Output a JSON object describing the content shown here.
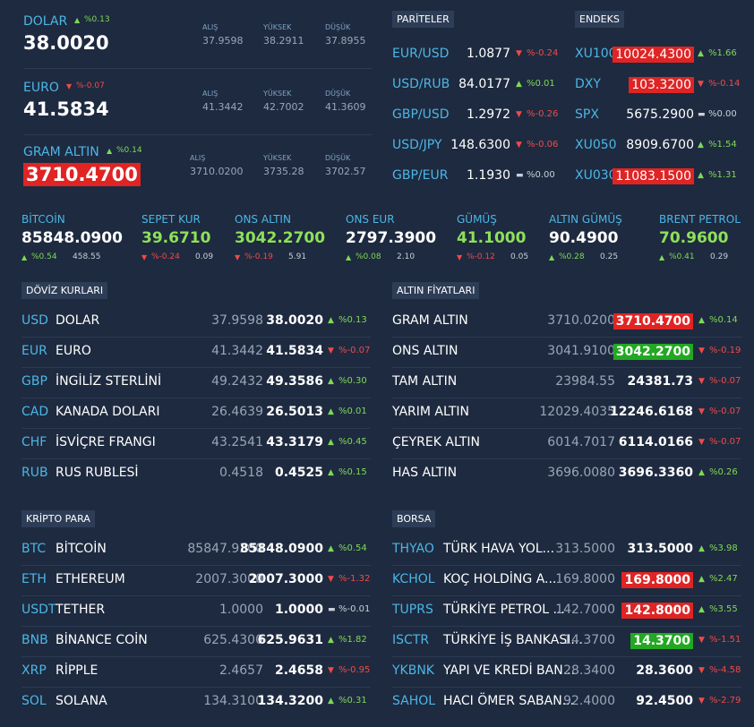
{
  "stat_labels": [
    "ALIŞ",
    "YÜKSEK",
    "DÜŞÜK"
  ],
  "top": [
    {
      "name": "DOLAR",
      "change": "%0.13",
      "trend": "up",
      "price": "38.0020",
      "stats": [
        "37.9598",
        "38.2911",
        "37.8955"
      ]
    },
    {
      "name": "EURO",
      "change": "%-0.07",
      "trend": "down",
      "price": "41.5834",
      "stats": [
        "41.3442",
        "42.7002",
        "41.3609"
      ]
    },
    {
      "name": "GRAM ALTIN",
      "change": "%0.14",
      "trend": "up",
      "price": "3710.4700",
      "highlight": "red",
      "stats": [
        "3710.0200",
        "3735.28",
        "3702.57"
      ]
    }
  ],
  "pariteler": {
    "title": "PARİTELER",
    "rows": [
      {
        "name": "EUR/USD",
        "value": "1.0877",
        "change": "%-0.24",
        "trend": "down"
      },
      {
        "name": "USD/RUB",
        "value": "84.0177",
        "change": "%0.01",
        "trend": "up"
      },
      {
        "name": "GBP/USD",
        "value": "1.2972",
        "change": "%-0.26",
        "trend": "down"
      },
      {
        "name": "USD/JPY",
        "value": "148.6300",
        "change": "%-0.06",
        "trend": "down"
      },
      {
        "name": "GBP/EUR",
        "value": "1.1930",
        "change": "%0.00",
        "trend": "flat"
      }
    ]
  },
  "endeks": {
    "title": "ENDEKS",
    "rows": [
      {
        "name": "XU100",
        "value": "10024.4300",
        "change": "%1.66",
        "trend": "up",
        "highlight": "red"
      },
      {
        "name": "DXY",
        "value": "103.3200",
        "change": "%-0.14",
        "trend": "down",
        "highlight": "red"
      },
      {
        "name": "SPX",
        "value": "5675.2900",
        "change": "%0.00",
        "trend": "flat"
      },
      {
        "name": "XU050",
        "value": "8909.6700",
        "change": "%1.54",
        "trend": "up"
      },
      {
        "name": "XU030",
        "value": "11083.1500",
        "change": "%1.31",
        "trend": "up",
        "highlight": "red"
      }
    ]
  },
  "strip": [
    {
      "name": "BİTCOİN",
      "price": "85848.0900",
      "color": "white",
      "change": "%0.54",
      "trend": "up",
      "diff": "458.55"
    },
    {
      "name": "SEPET KUR",
      "price": "39.6710",
      "color": "green",
      "change": "%-0.24",
      "trend": "down",
      "diff": "0.09"
    },
    {
      "name": "ONS ALTIN",
      "price": "3042.2700",
      "color": "green",
      "change": "%-0.19",
      "trend": "down",
      "diff": "5.91"
    },
    {
      "name": "ONS EUR",
      "price": "2797.3900",
      "color": "white",
      "change": "%0.08",
      "trend": "up",
      "diff": "2.10"
    },
    {
      "name": "GÜMÜŞ",
      "price": "41.1000",
      "color": "green",
      "change": "%-0.12",
      "trend": "down",
      "diff": "0.05"
    },
    {
      "name": "ALTIN GÜMÜŞ",
      "price": "90.4900",
      "color": "white",
      "change": "%0.28",
      "trend": "up",
      "diff": "0.25"
    },
    {
      "name": "BRENT PETROL",
      "price": "70.9600",
      "color": "green",
      "change": "%0.41",
      "trend": "up",
      "diff": "0.29"
    }
  ],
  "tables": [
    {
      "title": "DÖVİZ KURLARI",
      "rows": [
        {
          "code": "USD",
          "name": "DOLAR",
          "buy": "37.9598",
          "sell": "38.0020",
          "change": "%0.13",
          "trend": "up"
        },
        {
          "code": "EUR",
          "name": "EURO",
          "buy": "41.3442",
          "sell": "41.5834",
          "change": "%-0.07",
          "trend": "down"
        },
        {
          "code": "GBP",
          "name": "İNGİLİZ STERLİNİ",
          "buy": "49.2432",
          "sell": "49.3586",
          "change": "%0.30",
          "trend": "up"
        },
        {
          "code": "CAD",
          "name": "KANADA DOLARI",
          "buy": "26.4639",
          "sell": "26.5013",
          "change": "%0.01",
          "trend": "up"
        },
        {
          "code": "CHF",
          "name": "İSVİÇRE FRANGI",
          "buy": "43.2541",
          "sell": "43.3179",
          "change": "%0.45",
          "trend": "up"
        },
        {
          "code": "RUB",
          "name": "RUS RUBLESİ",
          "buy": "0.4518",
          "sell": "0.4525",
          "change": "%0.15",
          "trend": "up"
        }
      ]
    },
    {
      "title": "ALTIN FİYATLARI",
      "rows": [
        {
          "name": "GRAM ALTIN",
          "buy": "3710.0200",
          "sell": "3710.4700",
          "change": "%0.14",
          "trend": "up",
          "highlight": "red"
        },
        {
          "name": "ONS ALTIN",
          "buy": "3041.9100",
          "sell": "3042.2700",
          "change": "%-0.19",
          "trend": "down",
          "highlight": "green"
        },
        {
          "name": "TAM ALTIN",
          "buy": "23984.55",
          "sell": "24381.73",
          "change": "%-0.07",
          "trend": "down"
        },
        {
          "name": "YARIM ALTIN",
          "buy": "12029.4035",
          "sell": "12246.6168",
          "change": "%-0.07",
          "trend": "down"
        },
        {
          "name": "ÇEYREK ALTIN",
          "buy": "6014.7017",
          "sell": "6114.0166",
          "change": "%-0.07",
          "trend": "down"
        },
        {
          "name": "HAS ALTIN",
          "buy": "3696.0080",
          "sell": "3696.3360",
          "change": "%0.26",
          "trend": "up"
        }
      ]
    },
    {
      "title": "KRİPTO PARA",
      "rows": [
        {
          "code": "BTC",
          "name": "BİTCOİN",
          "buy": "85847.9300",
          "sell": "85848.0900",
          "change": "%0.54",
          "trend": "up"
        },
        {
          "code": "ETH",
          "name": "ETHEREUM",
          "buy": "2007.3000",
          "sell": "2007.3000",
          "change": "%-1.32",
          "trend": "down"
        },
        {
          "code": "USDT",
          "name": "TETHER",
          "buy": "1.0000",
          "sell": "1.0000",
          "change": "%-0.01",
          "trend": "flat"
        },
        {
          "code": "BNB",
          "name": "BİNANCE COİN",
          "buy": "625.4300",
          "sell": "625.9631",
          "change": "%1.82",
          "trend": "up"
        },
        {
          "code": "XRP",
          "name": "RİPPLE",
          "buy": "2.4657",
          "sell": "2.4658",
          "change": "%-0.95",
          "trend": "down"
        },
        {
          "code": "SOL",
          "name": "SOLANA",
          "buy": "134.3100",
          "sell": "134.3200",
          "change": "%0.31",
          "trend": "up"
        }
      ]
    },
    {
      "title": "BORSA",
      "rows": [
        {
          "code": "THYAO",
          "name": "TÜRK HAVA YOL...",
          "buy": "313.5000",
          "sell": "313.5000",
          "change": "%3.98",
          "trend": "up"
        },
        {
          "code": "KCHOL",
          "name": "KOÇ HOLDİNG A...",
          "buy": "169.8000",
          "sell": "169.8000",
          "change": "%2.47",
          "trend": "up",
          "highlight": "red"
        },
        {
          "code": "TUPRS",
          "name": "TÜRKİYE PETROL ...",
          "buy": "142.7000",
          "sell": "142.8000",
          "change": "%3.55",
          "trend": "up",
          "highlight": "red"
        },
        {
          "code": "ISCTR",
          "name": "TÜRKİYE İŞ BANKASI...",
          "buy": "14.3700",
          "sell": "14.3700",
          "change": "%-1.51",
          "trend": "down",
          "highlight": "green"
        },
        {
          "code": "YKBNK",
          "name": "YAPI VE KREDİ BAN...",
          "buy": "28.3400",
          "sell": "28.3600",
          "change": "%-4.58",
          "trend": "down"
        },
        {
          "code": "SAHOL",
          "name": "HACI ÖMER SABAN...",
          "buy": "92.4000",
          "sell": "92.4500",
          "change": "%-2.79",
          "trend": "down"
        }
      ]
    }
  ]
}
